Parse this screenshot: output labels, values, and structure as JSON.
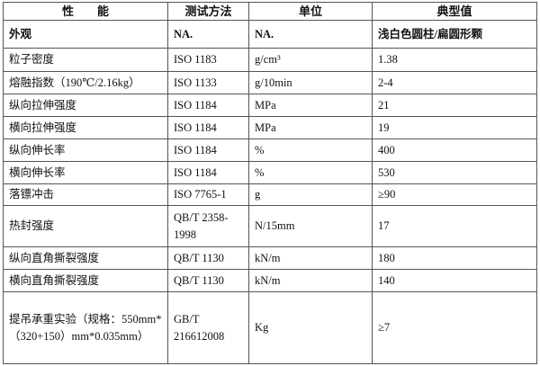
{
  "headers": [
    "性　　能",
    "测试方法",
    "单位",
    "典型值"
  ],
  "rows": [
    {
      "property": "外观",
      "method": "NA.",
      "unit": "NA.",
      "value": "浅白色圆柱/扁圆形颗"
    },
    {
      "property": "粒子密度",
      "method": "ISO 1183",
      "unit": "g/cm³",
      "value": "1.38"
    },
    {
      "property": "熔融指数（190℃/2.16kg）",
      "method": "ISO 1133",
      "unit": "g/10min",
      "value": "2-4"
    },
    {
      "property": "纵向拉伸强度",
      "method": "ISO 1184",
      "unit": "MPa",
      "value": "21"
    },
    {
      "property": "横向拉伸强度",
      "method": "ISO 1184",
      "unit": "MPa",
      "value": "19"
    },
    {
      "property": "纵向伸长率",
      "method": "ISO 1184",
      "unit": "%",
      "value": "400"
    },
    {
      "property": "横向伸长率",
      "method": "ISO 1184",
      "unit": "%",
      "value": "530"
    },
    {
      "property": "落镖冲击",
      "method": "ISO 7765-1",
      "unit": "g",
      "value": "≥90"
    },
    {
      "property": "热封强度",
      "method": "QB/T 2358-1998",
      "unit": "N/15mm",
      "value": "17"
    },
    {
      "property": "纵向直角撕裂强度",
      "method": "QB/T 1130",
      "unit": "kN/m",
      "value": "180"
    },
    {
      "property": "横向直角撕裂强度",
      "method": "QB/T 1130",
      "unit": "kN/m",
      "value": "140"
    },
    {
      "property": "提吊承重实验（规格：550mm*（320+150）mm*0.035mm）",
      "method": "GB/T 216612008",
      "unit": "Kg",
      "value": "≥7"
    }
  ]
}
